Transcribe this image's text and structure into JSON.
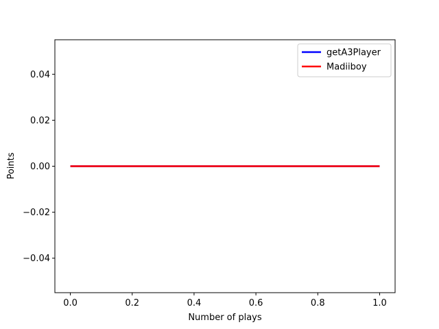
{
  "chart_data": {
    "type": "line",
    "xlabel": "Number of plays",
    "ylabel": "Points",
    "xlim": [
      -0.05,
      1.05
    ],
    "ylim": [
      -0.055,
      0.055
    ],
    "x_ticks": [
      0.0,
      0.2,
      0.4,
      0.6,
      0.8,
      1.0
    ],
    "x_tick_labels": [
      "0.0",
      "0.2",
      "0.4",
      "0.6",
      "0.8",
      "1.0"
    ],
    "y_ticks": [
      -0.04,
      -0.02,
      0.0,
      0.02,
      0.04
    ],
    "y_tick_labels": [
      "−0.04",
      "−0.02",
      "0.00",
      "0.02",
      "0.04"
    ],
    "grid": false,
    "legend_position": "top-right",
    "series": [
      {
        "name": "getA3Player",
        "color": "#0000ff",
        "x": [
          0,
          1
        ],
        "y": [
          0,
          0
        ]
      },
      {
        "name": "Madiiboy",
        "color": "#ff0000",
        "x": [
          0,
          1
        ],
        "y": [
          0,
          0
        ]
      }
    ]
  }
}
